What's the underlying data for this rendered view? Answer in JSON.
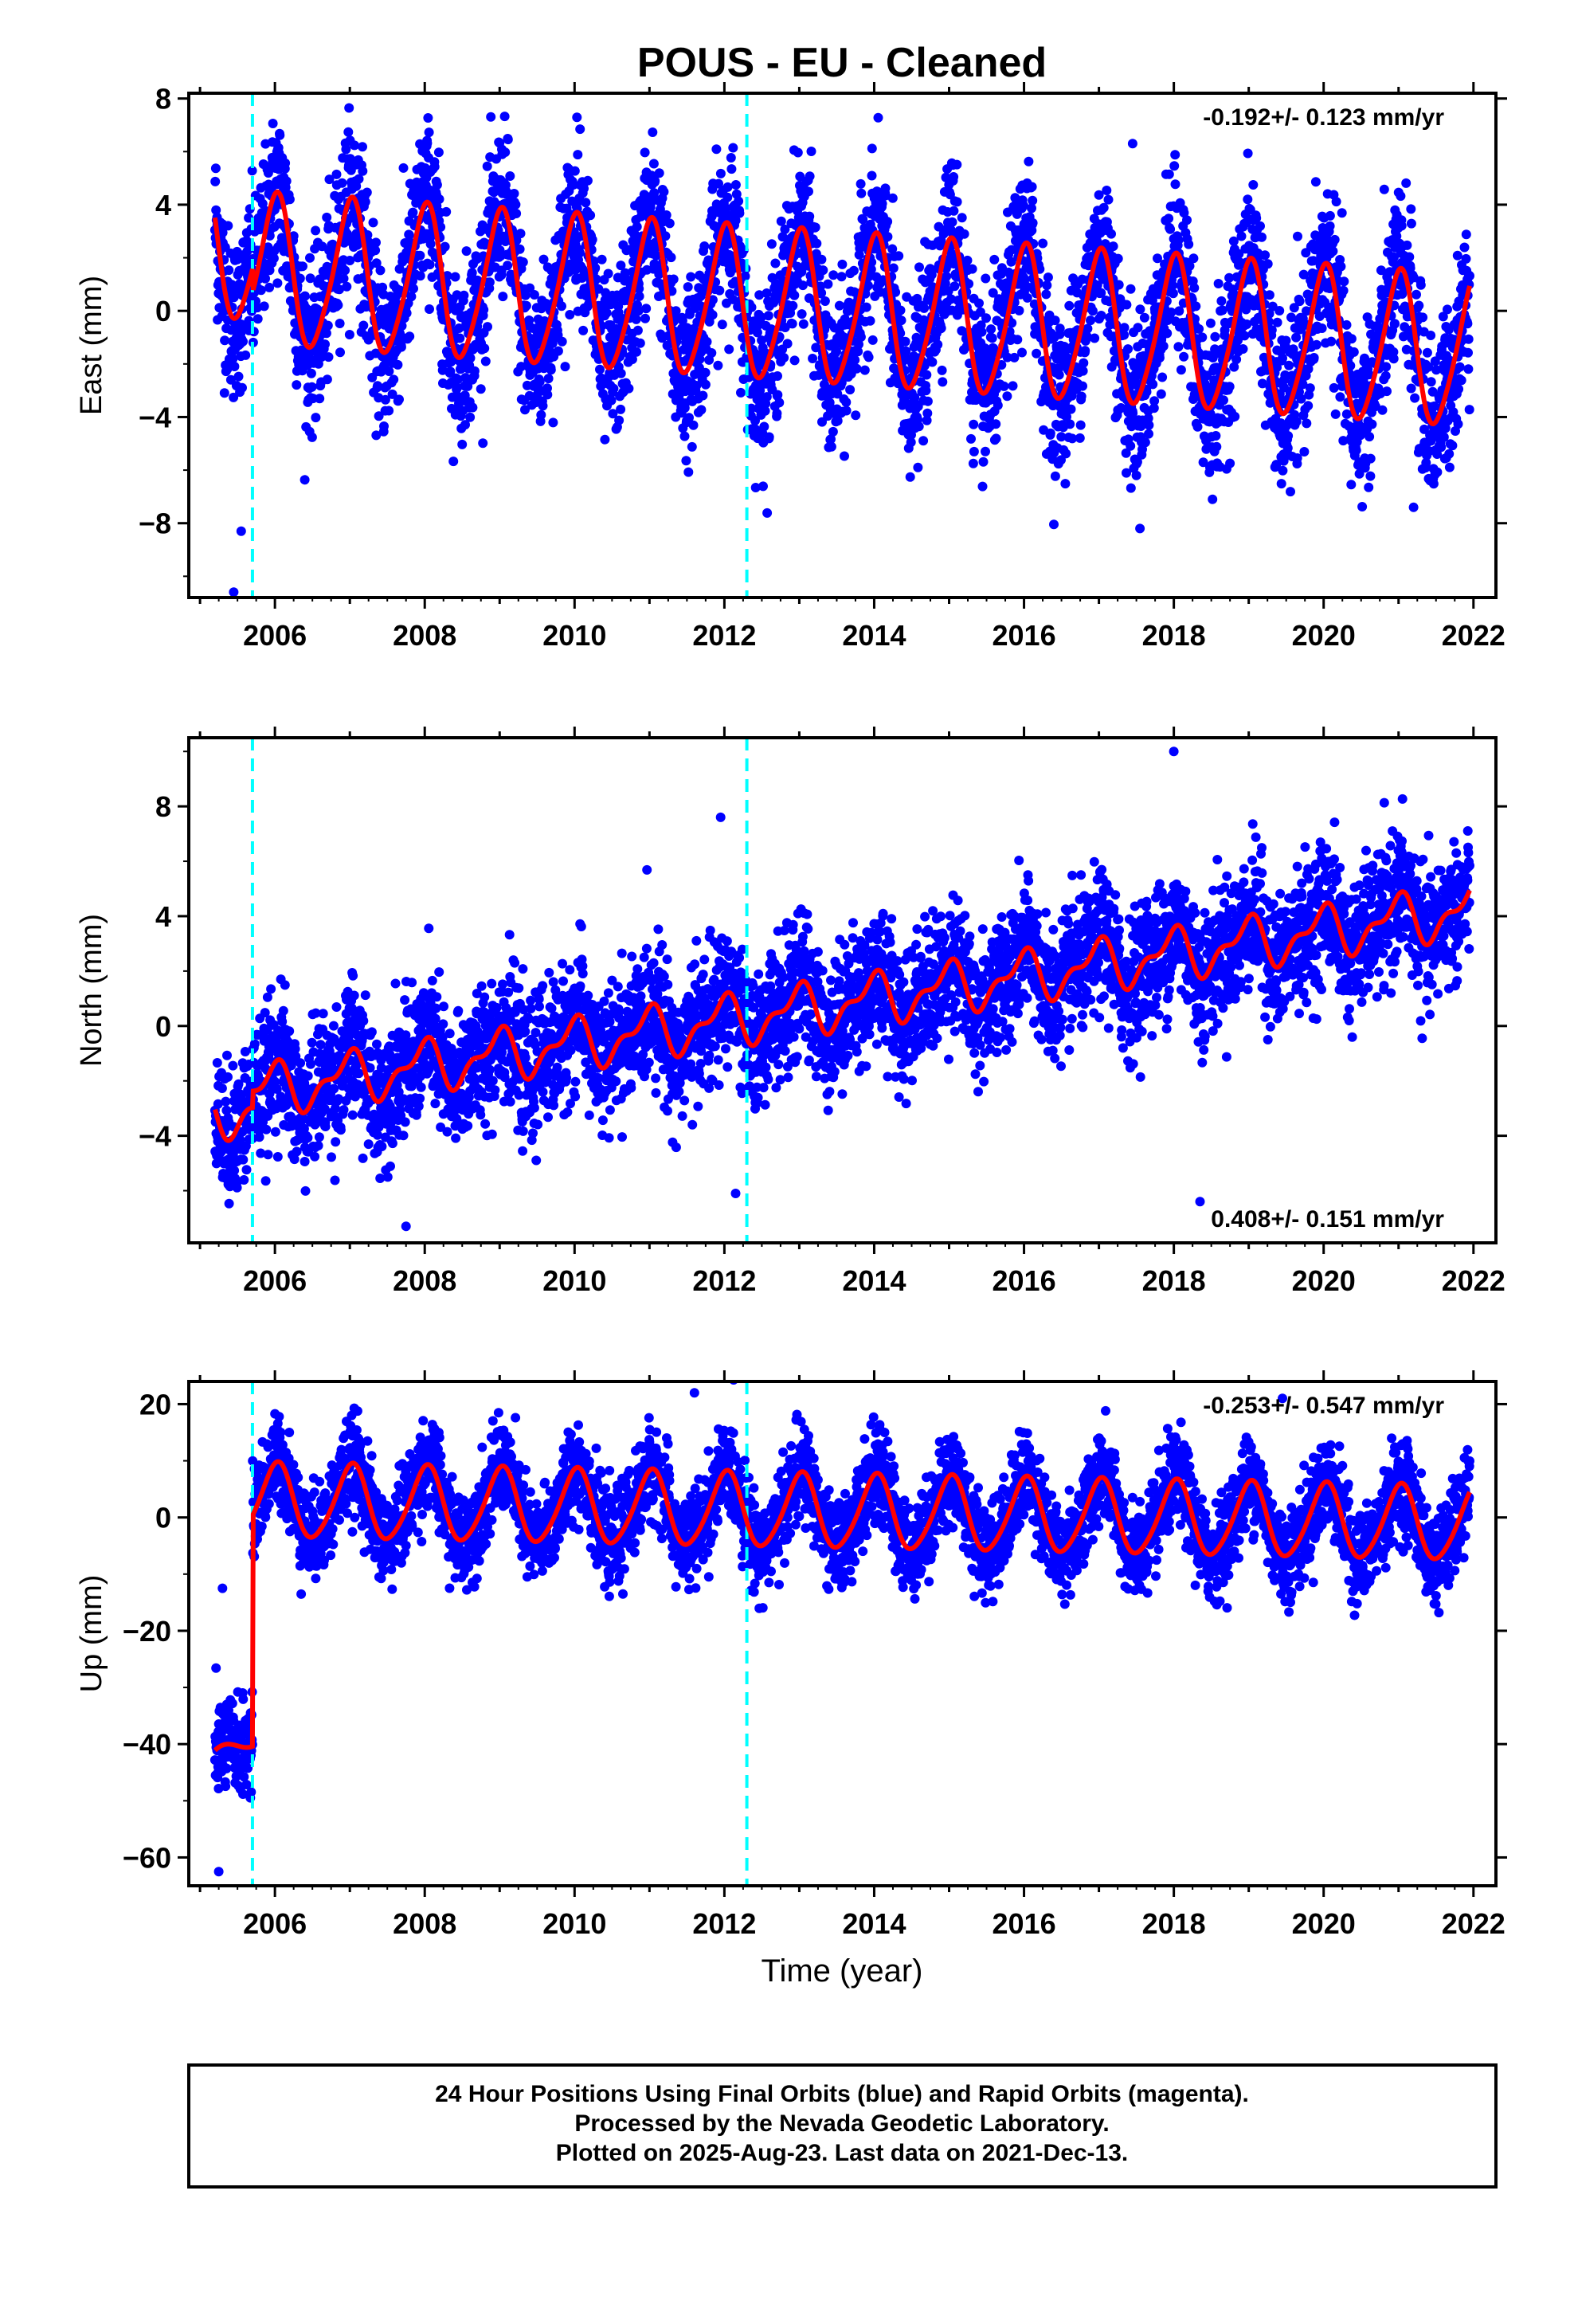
{
  "figure": {
    "title": "POUS  - EU - Cleaned",
    "x_axis_label": "Time (year)",
    "footer": [
      "24 Hour Positions Using Final Orbits (blue) and Rapid Orbits (magenta).",
      "Processed by the Nevada Geodetic Laboratory.",
      "Plotted on 2025-Aug-23. Last data on 2021-Dec-13."
    ],
    "colors": {
      "points": "#0000ff",
      "model": "#ff0000",
      "events": "#00ffff",
      "frame": "#000000"
    }
  },
  "chart_data": [
    {
      "type": "scatter",
      "component": "East",
      "ylabel": "East (mm)",
      "xlim": [
        2004.85,
        2022.3
      ],
      "ylim": [
        -10.8,
        8.2
      ],
      "xticks": [
        2006,
        2008,
        2010,
        2012,
        2014,
        2016,
        2018,
        2020,
        2022
      ],
      "yticks": [
        -8,
        -4,
        0,
        4,
        8
      ],
      "rate_label": "-0.192+/- 0.123 mm/yr",
      "rate_position": "top-right",
      "event_lines": [
        2005.7,
        2012.3
      ],
      "data_span": [
        2005.2,
        2021.95
      ],
      "model": {
        "offset": 1.6,
        "slope": -0.192,
        "annual_amp": 2.8,
        "annual_phase": 1.55,
        "semiannual_amp": 0.4,
        "step": {
          "year": 2005.7,
          "size": -0.9
        }
      },
      "scatter_sigma": 1.5,
      "outliers": [
        {
          "x": 2005.45,
          "y": -10.6
        },
        {
          "x": 2005.55,
          "y": -8.3
        },
        {
          "x": 2021.2,
          "y": -7.4
        },
        {
          "x": 2017.45,
          "y": 6.3
        }
      ]
    },
    {
      "type": "scatter",
      "component": "North",
      "ylabel": "North (mm)",
      "xlim": [
        2004.85,
        2022.3
      ],
      "ylim": [
        -7.9,
        10.5
      ],
      "xticks": [
        2006,
        2008,
        2010,
        2012,
        2014,
        2016,
        2018,
        2020,
        2022
      ],
      "yticks": [
        -4,
        0,
        4,
        8
      ],
      "rate_label": "0.408+/- 0.151 mm/yr",
      "rate_position": "bottom-right",
      "event_lines": [
        2005.7,
        2012.3
      ],
      "data_span": [
        2005.2,
        2021.95
      ],
      "model": {
        "offset": -2.6,
        "slope": 0.408,
        "annual_amp": 0.8,
        "annual_phase": 1.8,
        "semiannual_amp": 0.4,
        "step": {
          "year": 2005.7,
          "size": 0.6
        }
      },
      "scatter_sigma": 1.2,
      "outliers": [
        {
          "x": 2018.0,
          "y": 10.0
        },
        {
          "x": 2011.95,
          "y": 7.6
        },
        {
          "x": 2012.15,
          "y": -6.1
        },
        {
          "x": 2018.35,
          "y": -6.4
        },
        {
          "x": 2007.75,
          "y": -7.3
        }
      ]
    },
    {
      "type": "scatter",
      "component": "Up",
      "ylabel": "Up (mm)",
      "xlim": [
        2004.85,
        2022.3
      ],
      "ylim": [
        -65,
        24
      ],
      "xticks": [
        2006,
        2008,
        2010,
        2012,
        2014,
        2016,
        2018,
        2020,
        2022
      ],
      "yticks": [
        -60,
        -40,
        -20,
        0,
        20
      ],
      "rate_label": "-0.253+/- 0.547 mm/yr",
      "rate_position": "top-right",
      "event_lines": [
        2005.7,
        2012.3
      ],
      "data_span": [
        2005.2,
        2021.95
      ],
      "model": {
        "offset": 3.0,
        "slope": -0.253,
        "annual_amp": 6.5,
        "annual_phase": 1.45,
        "semiannual_amp": 0.8,
        "step": {
          "year": 2005.7,
          "size": 44.0
        },
        "pre_offset": -43
      },
      "scatter_sigma": 4.0,
      "outliers": [
        {
          "x": 2005.25,
          "y": -62.5
        },
        {
          "x": 2005.3,
          "y": -12.5
        },
        {
          "x": 2011.6,
          "y": 22.0
        },
        {
          "x": 2019.45,
          "y": 21.0
        }
      ]
    }
  ]
}
